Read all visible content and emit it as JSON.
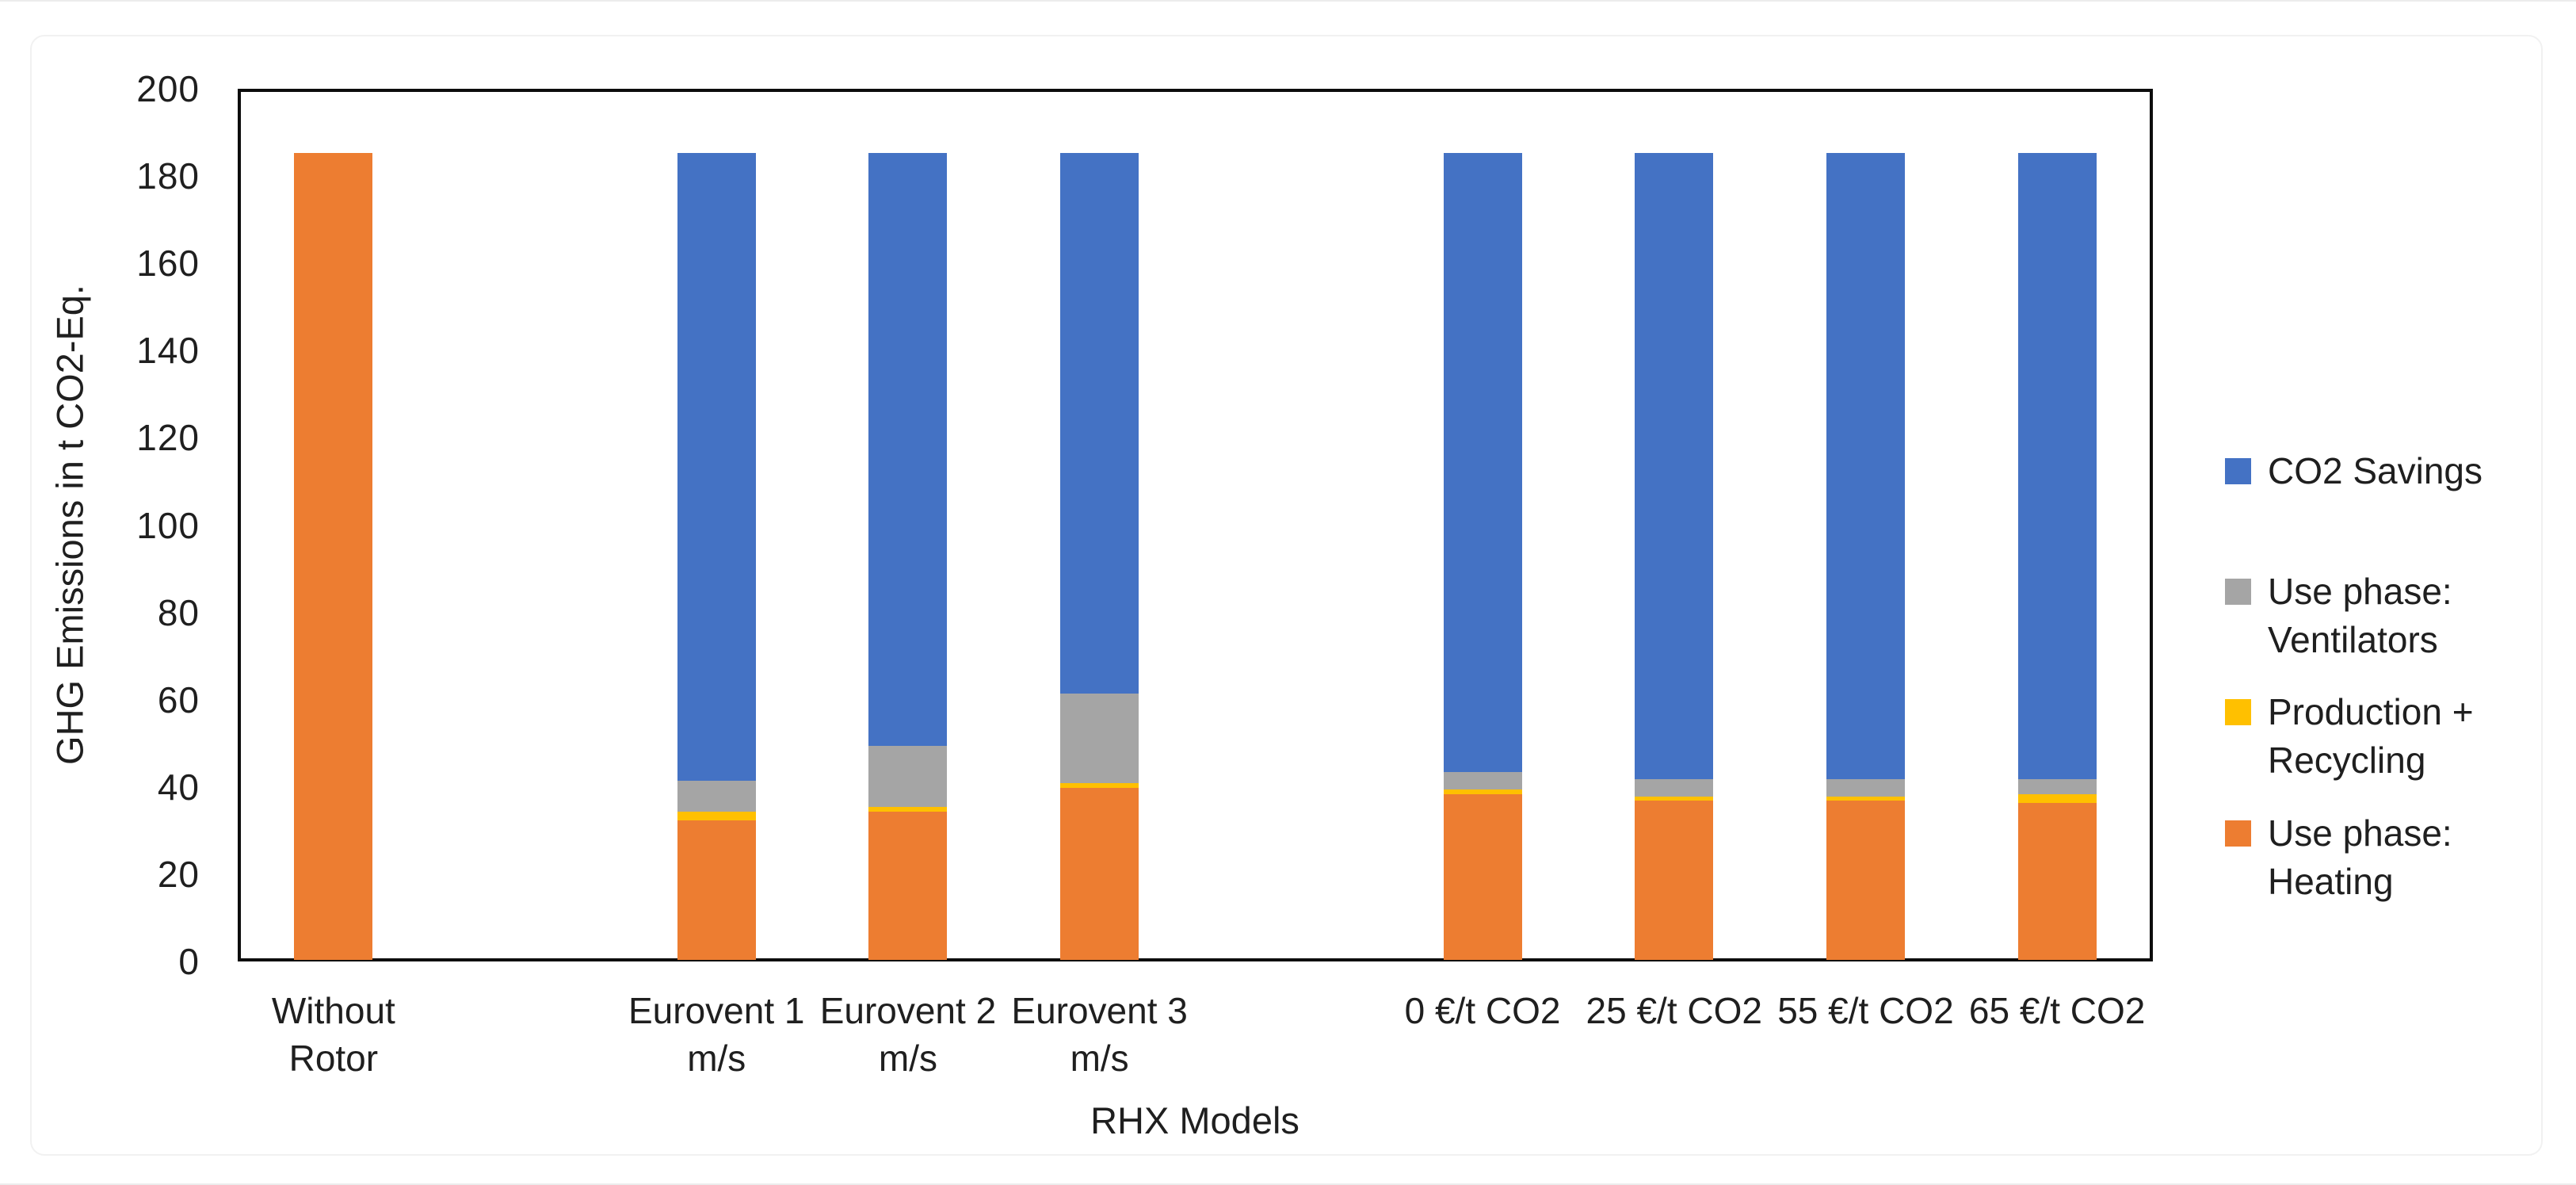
{
  "chart_data": {
    "type": "bar",
    "stacked": true,
    "title": "",
    "xlabel": "RHX Models",
    "ylabel": "GHG Emissions in t CO2-Eq.",
    "ylim": [
      0,
      200
    ],
    "ytick_step": 20,
    "grid": false,
    "legend_position": "right",
    "n_category_slots": 10,
    "bar_total": 185,
    "categories": [
      {
        "label": "Without Rotor",
        "lines": [
          "Without",
          "Rotor"
        ],
        "slot": 0
      },
      {
        "label": "Eurovent 1 m/s",
        "lines": [
          "Eurovent 1",
          "m/s"
        ],
        "slot": 2
      },
      {
        "label": "Eurovent 2 m/s",
        "lines": [
          "Eurovent 2",
          "m/s"
        ],
        "slot": 3
      },
      {
        "label": "Eurovent 3 m/s",
        "lines": [
          "Eurovent 3",
          "m/s"
        ],
        "slot": 4
      },
      {
        "label": "0 €/t CO2",
        "lines": [
          "0 €/t CO2"
        ],
        "slot": 6
      },
      {
        "label": "25 €/t CO2",
        "lines": [
          "25 €/t CO2"
        ],
        "slot": 7
      },
      {
        "label": "55 €/t CO2",
        "lines": [
          "55 €/t CO2"
        ],
        "slot": 8
      },
      {
        "label": "65 €/t CO2",
        "lines": [
          "65 €/t CO2"
        ],
        "slot": 9
      }
    ],
    "series": [
      {
        "name": "Use phase: Heating",
        "color": "#ED7D31",
        "values": [
          185,
          32,
          34,
          39.5,
          38,
          36.5,
          36.5,
          36
        ]
      },
      {
        "name": "Production + Recycling",
        "color": "#FFC000",
        "values": [
          0,
          2,
          1,
          1,
          1,
          1,
          1,
          2
        ]
      },
      {
        "name": "Use phase: Ventilators",
        "color": "#A5A5A5",
        "values": [
          0,
          7,
          14,
          20.5,
          4,
          4,
          4,
          3.5
        ]
      },
      {
        "name": "CO2 Savings",
        "color": "#4472C4",
        "values": [
          0,
          144,
          136,
          124,
          142,
          143.5,
          143.5,
          143.5
        ]
      }
    ],
    "legend": [
      {
        "series": "CO2 Savings",
        "lines": [
          "CO2 Savings"
        ]
      },
      {
        "series": "Use phase: Ventilators",
        "lines": [
          "Use phase:",
          "Ventilators"
        ]
      },
      {
        "series": "Production + Recycling",
        "lines": [
          "Production +",
          "Recycling"
        ]
      },
      {
        "series": "Use phase: Heating",
        "lines": [
          "Use phase:",
          "Heating"
        ]
      }
    ],
    "axis_color": "#0d0d0d",
    "text_color": "#1f1f1f"
  }
}
